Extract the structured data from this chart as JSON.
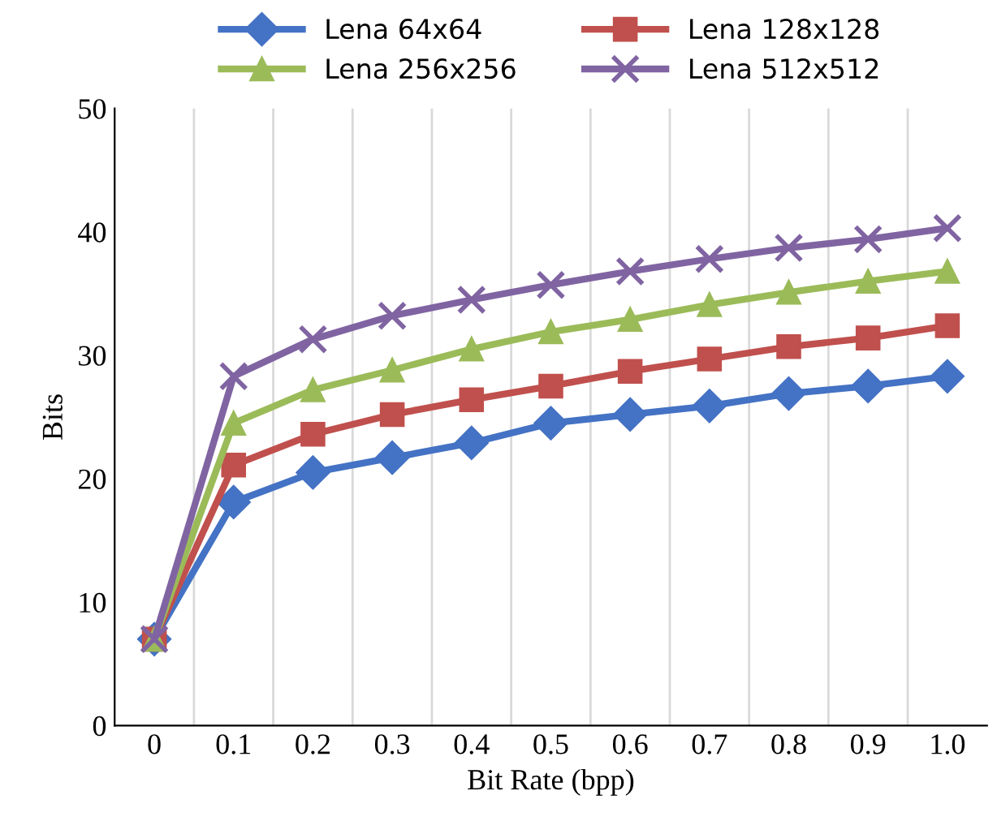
{
  "chart_data": {
    "type": "line",
    "xlabel": "Bit Rate (bpp)",
    "ylabel": "Bits",
    "categories": [
      "0",
      "0.1",
      "0.2",
      "0.3",
      "0.4",
      "0.5",
      "0.6",
      "0.7",
      "0.8",
      "0.9",
      "1.0"
    ],
    "series": [
      {
        "name": "Lena 64x64",
        "color": "#4472c4",
        "marker": "diamond",
        "values": [
          7,
          18.1,
          20.5,
          21.7,
          22.9,
          24.5,
          25.2,
          25.9,
          26.9,
          27.5,
          28.3
        ]
      },
      {
        "name": "Lena 128x128",
        "color": "#c0504d",
        "marker": "square",
        "values": [
          7,
          21.1,
          23.6,
          25.2,
          26.4,
          27.5,
          28.7,
          29.7,
          30.7,
          31.4,
          32.4
        ]
      },
      {
        "name": "Lena 256x256",
        "color": "#9bbb59",
        "marker": "triangle",
        "values": [
          7,
          24.5,
          27.2,
          28.8,
          30.5,
          31.9,
          32.9,
          34.1,
          35.1,
          36.0,
          36.8
        ]
      },
      {
        "name": "Lena 512x512",
        "color": "#8064a2",
        "marker": "cross",
        "values": [
          7,
          28.3,
          31.3,
          33.2,
          34.5,
          35.7,
          36.8,
          37.8,
          38.7,
          39.4,
          40.3
        ]
      }
    ],
    "ylim": [
      0,
      50
    ],
    "yticks": [
      0,
      10,
      20,
      30,
      40,
      50
    ],
    "grid": "x",
    "legend": "top",
    "line_style": "solid"
  }
}
